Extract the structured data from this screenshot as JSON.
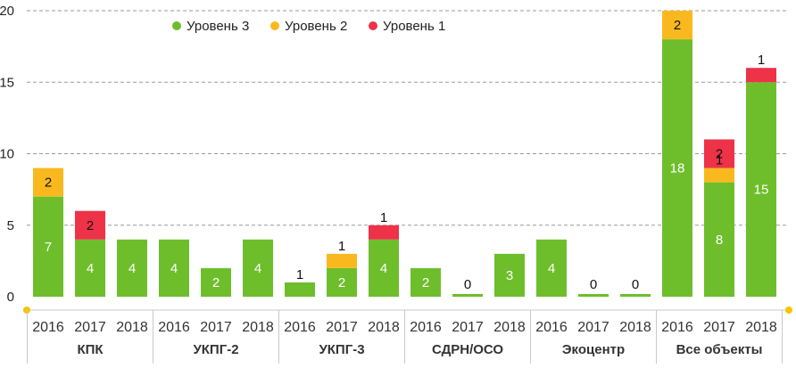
{
  "chart_data": {
    "type": "bar",
    "stacked": true,
    "ylim": [
      0,
      20
    ],
    "yticks": [
      "0",
      "5",
      "10",
      "15",
      "20"
    ],
    "grid": true,
    "legend_position": "top-center",
    "groups": [
      "КПК",
      "УКПГ-2",
      "УКПГ-3",
      "СДРН/ОСО",
      "Экоцентр",
      "Все объекты"
    ],
    "years": [
      "2016",
      "2017",
      "2018"
    ],
    "series": [
      {
        "name": "Уровень 3",
        "color": "#6ebe2c",
        "values": [
          7,
          4,
          4,
          4,
          2,
          4,
          1,
          2,
          4,
          2,
          0,
          3,
          4,
          0,
          0,
          18,
          8,
          15
        ]
      },
      {
        "name": "Уровень 2",
        "color": "#f9b91e",
        "values": [
          2,
          0,
          0,
          0,
          0,
          0,
          0,
          1,
          0,
          0,
          0,
          0,
          0,
          0,
          0,
          2,
          1,
          0
        ]
      },
      {
        "name": "Уровень 1",
        "color": "#ee3248",
        "values": [
          0,
          2,
          0,
          0,
          0,
          0,
          0,
          0,
          1,
          0,
          0,
          0,
          0,
          0,
          0,
          0,
          2,
          1
        ]
      }
    ]
  }
}
